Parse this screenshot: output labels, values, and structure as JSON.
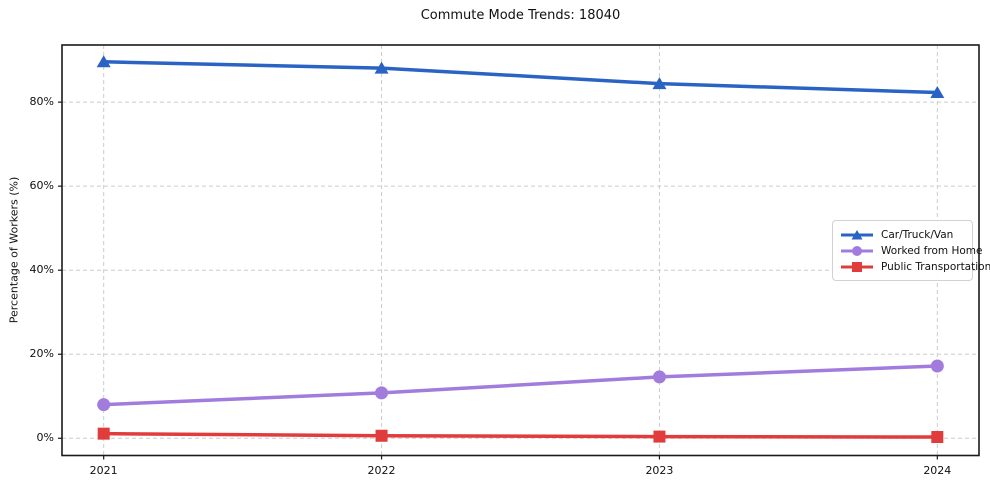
{
  "title": "Commute Mode Trends: 18040",
  "chart_data": {
    "type": "line",
    "title": "Commute Mode Trends: 18040",
    "xlabel": "",
    "ylabel": "Percentage of Workers (%)",
    "categories": [
      "2021",
      "2022",
      "2023",
      "2024"
    ],
    "series": [
      {
        "name": "Car/Truck/Van",
        "color": "#2a63c4",
        "marker": "triangle",
        "values": [
          89.6,
          88.1,
          84.4,
          82.3
        ]
      },
      {
        "name": "Worked from Home",
        "color": "#a17cdd",
        "marker": "circle",
        "values": [
          8.0,
          10.8,
          14.6,
          17.2
        ]
      },
      {
        "name": "Public Transportation",
        "color": "#e03c3c",
        "marker": "square",
        "values": [
          1.1,
          0.6,
          0.4,
          0.3
        ]
      }
    ],
    "y_ticks": {
      "values": [
        0,
        20,
        40,
        60,
        80
      ],
      "labels": [
        "0%",
        "20%",
        "40%",
        "60%",
        "80%"
      ]
    },
    "ylim": [
      -4.1,
      93.6
    ],
    "xlim": [
      -0.15,
      3.15
    ],
    "grid": "dashed",
    "grid_color": "#cccccc",
    "spine_color": "#1a1a1a",
    "legend_position": "center-right"
  }
}
